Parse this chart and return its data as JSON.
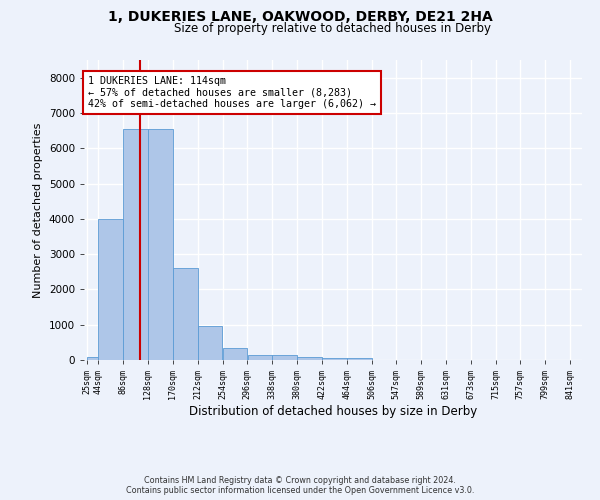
{
  "title1": "1, DUKERIES LANE, OAKWOOD, DERBY, DE21 2HA",
  "title2": "Size of property relative to detached houses in Derby",
  "xlabel": "Distribution of detached houses by size in Derby",
  "ylabel": "Number of detached properties",
  "bar_labels": [
    "25sqm",
    "44sqm",
    "86sqm",
    "128sqm",
    "170sqm",
    "212sqm",
    "254sqm",
    "296sqm",
    "338sqm",
    "380sqm",
    "422sqm",
    "464sqm",
    "506sqm",
    "547sqm",
    "589sqm",
    "631sqm",
    "673sqm",
    "715sqm",
    "757sqm",
    "799sqm",
    "841sqm"
  ],
  "bin_edges": [
    25,
    44,
    86,
    128,
    170,
    212,
    254,
    296,
    338,
    380,
    422,
    464,
    506,
    547,
    589,
    631,
    673,
    715,
    757,
    799,
    841
  ],
  "values": [
    75,
    4000,
    6550,
    6550,
    2600,
    950,
    330,
    140,
    130,
    75,
    60,
    70,
    0,
    0,
    0,
    0,
    0,
    0,
    0,
    0
  ],
  "bar_color": "#aec6e8",
  "bar_edgecolor": "#5b9bd5",
  "vline_x": 114,
  "vline_color": "#cc0000",
  "annotation_text": "1 DUKERIES LANE: 114sqm\n← 57% of detached houses are smaller (8,283)\n42% of semi-detached houses are larger (6,062) →",
  "annotation_box_edgecolor": "#cc0000",
  "annotation_box_facecolor": "#ffffff",
  "ylim_max": 8500,
  "yticks": [
    0,
    1000,
    2000,
    3000,
    4000,
    5000,
    6000,
    7000,
    8000
  ],
  "background_color": "#edf2fb",
  "grid_color": "#ffffff",
  "footer_line1": "Contains HM Land Registry data © Crown copyright and database right 2024.",
  "footer_line2": "Contains public sector information licensed under the Open Government Licence v3.0."
}
